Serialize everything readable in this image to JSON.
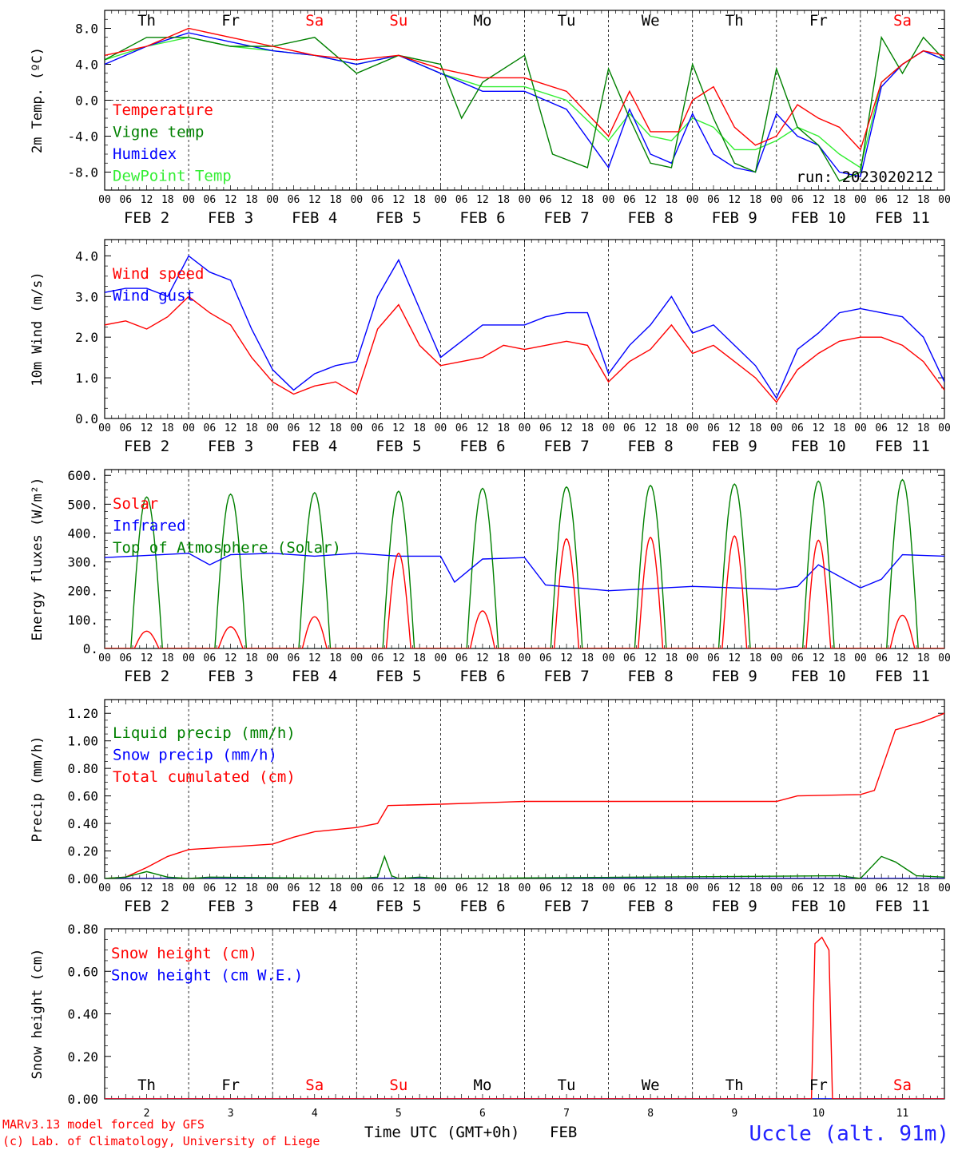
{
  "colors": {
    "red": "#ff0000",
    "green": "#008000",
    "blue": "#0000ff",
    "lightgreen": "#33ee33",
    "frame": "#000000",
    "weekend": "#ff0000",
    "station": "#2222ff"
  },
  "days": [
    {
      "abbr": "Th",
      "weekend": false,
      "label": "FEB  2",
      "num": "2"
    },
    {
      "abbr": "Fr",
      "weekend": false,
      "label": "FEB  3",
      "num": "3"
    },
    {
      "abbr": "Sa",
      "weekend": true,
      "label": "FEB  4",
      "num": "4"
    },
    {
      "abbr": "Su",
      "weekend": true,
      "label": "FEB  5",
      "num": "5"
    },
    {
      "abbr": "Mo",
      "weekend": false,
      "label": "FEB  6",
      "num": "6"
    },
    {
      "abbr": "Tu",
      "weekend": false,
      "label": "FEB  7",
      "num": "7"
    },
    {
      "abbr": "We",
      "weekend": false,
      "label": "FEB  8",
      "num": "8"
    },
    {
      "abbr": "Th",
      "weekend": false,
      "label": "FEB  9",
      "num": "9"
    },
    {
      "abbr": "Fr",
      "weekend": false,
      "label": "FEB 10",
      "num": "10"
    },
    {
      "abbr": "Sa",
      "weekend": true,
      "label": "FEB 11",
      "num": "11"
    }
  ],
  "hour_labels": [
    "00",
    "06",
    "12",
    "18"
  ],
  "final_hour_label": "00",
  "run_label": "run: 2023020212",
  "footer": {
    "model": "MARv3.13 model forced by GFS",
    "credit": "(c) Lab. of Climatology, University of Liege",
    "axis_title": "Time UTC (GMT+0h)",
    "month": "FEB",
    "station": "Uccle (alt. 91m)"
  },
  "chart_data": [
    {
      "type": "line",
      "id": "temp",
      "ylabel": "2m Temp. (ºC)",
      "ylim": [
        -10,
        10
      ],
      "ticks": [
        "8.0",
        "4.0",
        "0.0",
        "-4.0",
        "-8.0"
      ],
      "tick_values": [
        8,
        4,
        0,
        -4,
        -8
      ],
      "zero_line": true,
      "x_unit": "hours since FEB 2 00 UTC",
      "series": [
        {
          "name": "Temperature",
          "color": "red",
          "x": [
            0,
            12,
            24,
            36,
            48,
            60,
            72,
            84,
            96,
            108,
            120,
            132,
            144,
            150,
            156,
            164,
            168,
            174,
            180,
            186,
            192,
            198,
            204,
            210,
            216,
            222,
            228,
            234,
            240
          ],
          "y": [
            5,
            6,
            8,
            7,
            6,
            5,
            4.5,
            5,
            3.5,
            2.5,
            2.5,
            1,
            -4,
            1,
            -3.5,
            -3.5,
            0,
            1.5,
            -3,
            -5,
            -4,
            -0.5,
            -2,
            -3,
            -5.5,
            2,
            4,
            5.5,
            5
          ]
        },
        {
          "name": "Vigne temp",
          "color": "green",
          "x": [
            0,
            12,
            24,
            36,
            48,
            60,
            72,
            84,
            96,
            102,
            108,
            120,
            128,
            138,
            144,
            150,
            156,
            162,
            168,
            174,
            180,
            186,
            192,
            198,
            204,
            210,
            216,
            222,
            228,
            234,
            240
          ],
          "y": [
            4.5,
            7,
            7,
            6,
            6,
            7,
            3,
            5,
            4,
            -2,
            2,
            5,
            -6,
            -7.5,
            3.5,
            -2,
            -7,
            -7.5,
            4,
            -2,
            -7,
            -8,
            3.5,
            -3,
            -5,
            -9,
            -8,
            7,
            3,
            7,
            4.5
          ]
        },
        {
          "name": "Humidex",
          "color": "blue",
          "x": [
            0,
            12,
            24,
            36,
            48,
            60,
            72,
            84,
            96,
            108,
            120,
            132,
            144,
            150,
            156,
            162,
            168,
            174,
            180,
            186,
            192,
            198,
            204,
            210,
            216,
            222,
            228,
            234,
            240
          ],
          "y": [
            4,
            6,
            7.5,
            6.5,
            5.5,
            5,
            4,
            5,
            3,
            1,
            1,
            -1,
            -7.5,
            -1,
            -6,
            -7,
            -1.5,
            -6,
            -7.5,
            -8,
            -1.5,
            -4,
            -5,
            -8,
            -8.5,
            1.5,
            4,
            5.5,
            4.5
          ]
        },
        {
          "name": "DewPoint Temp",
          "color": "lightgreen",
          "x": [
            0,
            12,
            24,
            36,
            48,
            60,
            72,
            84,
            96,
            108,
            120,
            132,
            144,
            150,
            156,
            162,
            168,
            174,
            180,
            186,
            192,
            198,
            204,
            210,
            216,
            222,
            228,
            234,
            240
          ],
          "y": [
            4.5,
            6,
            7,
            6,
            5.5,
            5,
            4,
            5,
            3,
            1.5,
            1.5,
            0,
            -4.5,
            -1.5,
            -4,
            -4.5,
            -2,
            -3,
            -5.5,
            -5.5,
            -4.5,
            -3,
            -4,
            -6,
            -7.5,
            2,
            4,
            5.5,
            4.5
          ]
        }
      ]
    },
    {
      "type": "line",
      "id": "wind",
      "ylabel": "10m Wind (m/s)",
      "ylim": [
        0,
        4.4
      ],
      "ticks": [
        "4.0",
        "3.0",
        "2.0",
        "1.0",
        "0.0"
      ],
      "tick_values": [
        4,
        3,
        2,
        1,
        0
      ],
      "zero_line": false,
      "x_unit": "hours since FEB 2 00 UTC",
      "series": [
        {
          "name": "Wind speed",
          "color": "red",
          "x": [
            0,
            6,
            12,
            18,
            24,
            30,
            36,
            42,
            48,
            54,
            60,
            66,
            72,
            78,
            84,
            90,
            96,
            102,
            108,
            114,
            120,
            126,
            132,
            138,
            144,
            150,
            156,
            162,
            168,
            174,
            180,
            186,
            192,
            198,
            204,
            210,
            216,
            222,
            228,
            234,
            240
          ],
          "y": [
            2.3,
            2.4,
            2.2,
            2.5,
            3,
            2.6,
            2.3,
            1.5,
            0.9,
            0.6,
            0.8,
            0.9,
            0.6,
            2.2,
            2.8,
            1.8,
            1.3,
            1.4,
            1.5,
            1.8,
            1.7,
            1.8,
            1.9,
            1.8,
            0.9,
            1.4,
            1.7,
            2.3,
            1.6,
            1.8,
            1.4,
            1,
            0.4,
            1.2,
            1.6,
            1.9,
            2,
            2,
            1.8,
            1.4,
            0.7
          ]
        },
        {
          "name": "Wind gust",
          "color": "blue",
          "x": [
            0,
            6,
            12,
            18,
            24,
            30,
            36,
            42,
            48,
            54,
            60,
            66,
            72,
            78,
            84,
            90,
            96,
            102,
            108,
            114,
            120,
            126,
            132,
            138,
            144,
            150,
            156,
            162,
            168,
            174,
            180,
            186,
            192,
            198,
            204,
            210,
            216,
            222,
            228,
            234,
            240
          ],
          "y": [
            3.1,
            3.2,
            3.2,
            3,
            4,
            3.6,
            3.4,
            2.2,
            1.2,
            0.7,
            1.1,
            1.3,
            1.4,
            3,
            3.9,
            2.7,
            1.5,
            1.9,
            2.3,
            2.3,
            2.3,
            2.5,
            2.6,
            2.6,
            1.1,
            1.8,
            2.3,
            3,
            2.1,
            2.3,
            1.8,
            1.3,
            0.5,
            1.7,
            2.1,
            2.6,
            2.7,
            2.6,
            2.5,
            2,
            0.9
          ]
        }
      ]
    },
    {
      "type": "line",
      "id": "energy",
      "ylabel": "Energy fluxes (W/m²)",
      "ylim": [
        0,
        620
      ],
      "ticks": [
        "600.",
        "500.",
        "400.",
        "300.",
        "200.",
        "100.",
        "0."
      ],
      "tick_values": [
        600,
        500,
        400,
        300,
        200,
        100,
        0
      ],
      "zero_line": false,
      "x_unit": "hours since FEB 2 00 UTC",
      "toa_peaks": [
        525,
        535,
        540,
        545,
        555,
        560,
        565,
        570,
        580,
        585
      ],
      "solar_peaks": [
        60,
        75,
        110,
        330,
        130,
        380,
        385,
        390,
        375,
        115
      ],
      "series": [
        {
          "name": "Solar",
          "color": "red",
          "type": "diurnal",
          "peaks": "solar_peaks"
        },
        {
          "name": "Infrared",
          "color": "blue",
          "x": [
            0,
            24,
            30,
            36,
            48,
            60,
            72,
            84,
            96,
            100,
            108,
            120,
            126,
            144,
            168,
            192,
            198,
            204,
            216,
            222,
            228,
            240
          ],
          "y": [
            315,
            330,
            290,
            325,
            330,
            320,
            330,
            320,
            320,
            230,
            310,
            315,
            220,
            200,
            215,
            205,
            215,
            290,
            210,
            240,
            325,
            320
          ]
        },
        {
          "name": "Top of Atmosphere (Solar)",
          "color": "green",
          "type": "diurnal",
          "peaks": "toa_peaks"
        }
      ]
    },
    {
      "type": "line",
      "id": "precip",
      "ylabel": "Precip (mm/h)",
      "ylim": [
        0,
        1.3
      ],
      "ticks": [
        "1.20",
        "1.00",
        "0.80",
        "0.60",
        "0.40",
        "0.20",
        "0.00"
      ],
      "tick_values": [
        1.2,
        1,
        0.8,
        0.6,
        0.4,
        0.2,
        0
      ],
      "zero_line": false,
      "x_unit": "hours since FEB 2 00 UTC",
      "series": [
        {
          "name": "Liquid precip (mm/h)",
          "color": "green",
          "x": [
            0,
            6,
            12,
            18,
            24,
            30,
            72,
            78,
            80,
            82,
            84,
            90,
            96,
            210,
            216,
            222,
            226,
            232,
            240
          ],
          "y": [
            0,
            0.01,
            0.05,
            0.01,
            0,
            0.01,
            0,
            0.01,
            0.16,
            0.02,
            0,
            0.01,
            0,
            0.02,
            0,
            0.16,
            0.12,
            0.02,
            0.01
          ]
        },
        {
          "name": "Snow precip (mm/h)",
          "color": "blue",
          "x": [
            0,
            240
          ],
          "y": [
            0,
            0
          ]
        },
        {
          "name": "Total cumulated (cm)",
          "color": "red",
          "x": [
            0,
            6,
            12,
            18,
            24,
            36,
            48,
            54,
            60,
            72,
            78,
            81,
            96,
            120,
            168,
            192,
            198,
            216,
            220,
            226,
            234,
            240
          ],
          "y": [
            0,
            0.01,
            0.08,
            0.16,
            0.21,
            0.23,
            0.25,
            0.3,
            0.34,
            0.37,
            0.4,
            0.53,
            0.54,
            0.56,
            0.56,
            0.56,
            0.6,
            0.61,
            0.64,
            1.08,
            1.14,
            1.2
          ]
        }
      ]
    },
    {
      "type": "line",
      "id": "snow",
      "ylabel": "Snow height (cm)",
      "ylim": [
        0,
        0.8
      ],
      "ticks": [
        "0.80",
        "0.60",
        "0.40",
        "0.20",
        "0.00"
      ],
      "tick_values": [
        0.8,
        0.6,
        0.4,
        0.2,
        0
      ],
      "zero_line": false,
      "x_unit": "hours since FEB 2 00 UTC",
      "series": [
        {
          "name": "Snow height (cm)",
          "color": "red",
          "x": [
            0,
            202,
            203,
            205,
            207,
            208,
            240
          ],
          "y": [
            0,
            0,
            0.73,
            0.76,
            0.7,
            0,
            0
          ]
        },
        {
          "name": "Snow height (cm W.E.)",
          "color": "blue",
          "x": [
            0,
            240
          ],
          "y": [
            0,
            0
          ]
        }
      ]
    }
  ]
}
